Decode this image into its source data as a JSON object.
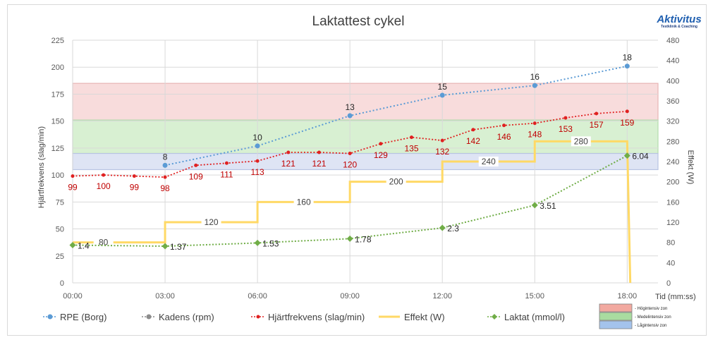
{
  "chart_data": {
    "type": "line",
    "title": "Laktattest cykel",
    "logo": {
      "name": "Aktivitus",
      "tagline": "Testklinik & Coaching"
    },
    "xlabel": "Tid (mm:ss)",
    "ylabel": "Hjärtfrekvens (slag/min)",
    "y2label": "Effekt (W)",
    "ylim": [
      0,
      225
    ],
    "y2lim": [
      0,
      480
    ],
    "xlim": [
      0,
      19
    ],
    "x_ticks": [
      0,
      3,
      6,
      9,
      12,
      15,
      18
    ],
    "x_tick_labels": [
      "00:00",
      "03:00",
      "06:00",
      "09:00",
      "12:00",
      "15:00",
      "18:00"
    ],
    "y_ticks": [
      0,
      25,
      50,
      75,
      100,
      125,
      150,
      175,
      200,
      225
    ],
    "y_tick_labels": [
      "0",
      "25",
      "50",
      "75",
      "100",
      "125",
      "150",
      "175",
      "200",
      "225"
    ],
    "y2_ticks": [
      0,
      40,
      80,
      120,
      160,
      200,
      240,
      280,
      320,
      360,
      400,
      440,
      480
    ],
    "y2_tick_labels": [
      "0",
      "40",
      "80",
      "120",
      "160",
      "200",
      "240",
      "280",
      "320",
      "360",
      "400",
      "440",
      "480"
    ],
    "zones": [
      {
        "name": "Högintensiv zon",
        "y0": 151,
        "y1": 185,
        "fill": "#f8dcdc",
        "stroke": "#e8b4b4",
        "legend": "#f2a9a0"
      },
      {
        "name": "Medelintensiv zon",
        "y0": 120,
        "y1": 151,
        "fill": "#d8f0d2",
        "stroke": "#b4dcae",
        "legend": "#a9dca0"
      },
      {
        "name": "Lågintensiv zon",
        "y0": 105,
        "y1": 120,
        "fill": "#dee4f4",
        "stroke": "#b8c4e2",
        "legend": "#a4c3ec"
      }
    ],
    "series": [
      {
        "name": "RPE (Borg)",
        "color": "#5b9bd5",
        "axis": "left",
        "style": "dotted",
        "marker": "circle",
        "x": [
          3,
          6,
          9,
          12,
          15,
          18
        ],
        "y": [
          109,
          127,
          155,
          174,
          183,
          201
        ],
        "labels": [
          "8",
          "10",
          "13",
          "15",
          "16",
          "18"
        ]
      },
      {
        "name": "Kadens (rpm)",
        "color": "#8c8c8c",
        "axis": "left",
        "style": "dotted",
        "marker": "circle",
        "x": [],
        "y": [],
        "labels": []
      },
      {
        "name": "Hjärtfrekvens (slag/min)",
        "color": "#e02020",
        "axis": "left",
        "style": "dotted",
        "marker": "dot",
        "x": [
          0,
          1,
          2,
          3,
          4,
          5,
          6,
          7,
          8,
          9,
          10,
          11,
          12,
          13,
          14,
          15,
          16,
          17,
          18
        ],
        "y": [
          99,
          100,
          99,
          98,
          109,
          111,
          113,
          121,
          121,
          120,
          129,
          135,
          132,
          142,
          146,
          148,
          153,
          157,
          159
        ],
        "labels": [
          "99",
          "100",
          "99",
          "98",
          "109",
          "111",
          "113",
          "121",
          "121",
          "120",
          "129",
          "135",
          "132",
          "142",
          "146",
          "148",
          "153",
          "157",
          "159"
        ]
      },
      {
        "name": "Effekt (W)",
        "color": "#ffd966",
        "axis": "right",
        "style": "step",
        "x": [
          0,
          3,
          3,
          6,
          6,
          9,
          9,
          12,
          12,
          15,
          15,
          18,
          18.1
        ],
        "y": [
          80,
          80,
          120,
          120,
          160,
          160,
          200,
          200,
          240,
          240,
          280,
          280,
          0
        ],
        "step_labels": [
          {
            "x": 1,
            "y": 80,
            "text": "80"
          },
          {
            "x": 4.5,
            "y": 120,
            "text": "120"
          },
          {
            "x": 7.5,
            "y": 160,
            "text": "160"
          },
          {
            "x": 10.5,
            "y": 200,
            "text": "200"
          },
          {
            "x": 13.5,
            "y": 240,
            "text": "240"
          },
          {
            "x": 16.5,
            "y": 280,
            "text": "280"
          }
        ]
      },
      {
        "name": "Laktat (mmol/l)",
        "color": "#70ad47",
        "axis": "left",
        "style": "dotted",
        "marker": "diamond",
        "x": [
          0,
          3,
          6,
          9,
          12,
          15,
          18
        ],
        "y": [
          35,
          34,
          37,
          41,
          51,
          72,
          118
        ],
        "labels": [
          "1.4",
          "1.37",
          "1.53",
          "1.78",
          "2.3",
          "3.51",
          "6.04"
        ]
      }
    ],
    "legend_position": "bottom"
  }
}
